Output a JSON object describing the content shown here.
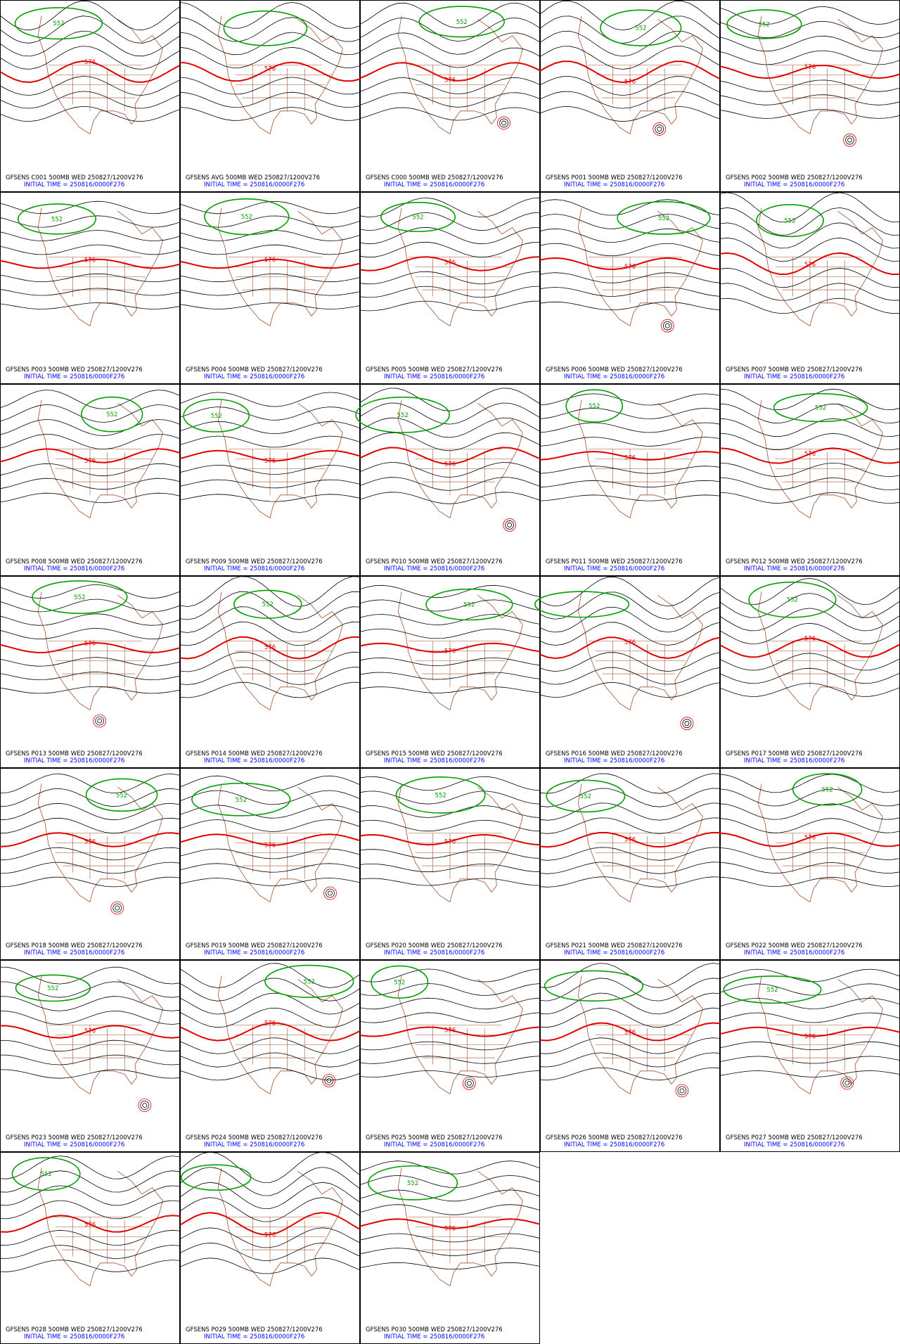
{
  "panels": [
    {
      "caption": "GFSENS C001 500MB WED 250827/1200V276",
      "init": "INITIAL TIME = 250816/0000F276",
      "labels": [
        "552",
        "576"
      ]
    },
    {
      "caption": "GFSENS AVG 500MB WED 250827/1200V276",
      "init": "INITIAL TIME = 250816/0000F276",
      "labels": [
        "576"
      ]
    },
    {
      "caption": "GFSENS C000 500MB WED 250827/1200V276",
      "init": "INITIAL TIME = 250816/0000F276",
      "labels": [
        "552",
        "576"
      ]
    },
    {
      "caption": "GFSENS P001 500MB WED 250827/1200V276",
      "init": "INITIAL TIME = 250816/0000F276",
      "labels": [
        "552",
        "576"
      ]
    },
    {
      "caption": "GFSENS P002 500MB WED 250827/1200V276",
      "init": "INITIAL TIME = 250816/0000F276",
      "labels": [
        "552",
        "576"
      ]
    },
    {
      "caption": "GFSENS P003 500MB WED 250827/1200V276",
      "init": "INITIAL TIME = 250816/0000F276",
      "labels": [
        "552",
        "576"
      ]
    },
    {
      "caption": "GFSENS P004 500MB WED 250827/1200V276",
      "init": "INITIAL TIME = 250816/0000F276",
      "labels": [
        "552",
        "576"
      ]
    },
    {
      "caption": "GFSENS P005 500MB WED 250827/1200V276",
      "init": "INITIAL TIME = 250816/0000F276",
      "labels": [
        "552",
        "576"
      ]
    },
    {
      "caption": "GFSENS P006 500MB WED 250827/1200V276",
      "init": "INITIAL TIME = 250816/0000F276",
      "labels": [
        "552",
        "576"
      ]
    },
    {
      "caption": "GFSENS P007 500MB WED 250827/1200V276",
      "init": "INITIAL TIME = 250816/0000F276",
      "labels": [
        "552",
        "576"
      ]
    },
    {
      "caption": "GFSENS P008 500MB WED 250827/1200V276",
      "init": "INITIAL TIME = 250816/0000F276",
      "labels": [
        "552",
        "576"
      ]
    },
    {
      "caption": "GFSENS P009 500MB WED 250827/1200V276",
      "init": "INITIAL TIME = 250816/0000F276",
      "labels": [
        "552",
        "576"
      ]
    },
    {
      "caption": "GFSENS P010 500MB WED 250827/1200V276",
      "init": "INITIAL TIME = 250816/0000F276",
      "labels": [
        "552",
        "576"
      ]
    },
    {
      "caption": "GFSENS P011 500MB WED 250827/1200V276",
      "init": "INITIAL TIME = 250816/0000F276",
      "labels": [
        "552",
        "576"
      ]
    },
    {
      "caption": "GFSENS P012 500MB WED 250827/1200V276",
      "init": "INITIAL TIME = 250816/0000F276",
      "labels": [
        "552",
        "576"
      ]
    },
    {
      "caption": "GFSENS P013 500MB WED 250827/1200V276",
      "init": "INITIAL TIME = 250816/0000F276",
      "labels": [
        "552",
        "576"
      ]
    },
    {
      "caption": "GFSENS P014 500MB WED 250827/1200V276",
      "init": "INITIAL TIME = 250816/0000F276",
      "labels": [
        "552",
        "576"
      ]
    },
    {
      "caption": "GFSENS P015 500MB WED 250827/1200V276",
      "init": "INITIAL TIME = 250816/0000F276",
      "labels": [
        "552",
        "576"
      ]
    },
    {
      "caption": "GFSENS P016 500MB WED 250827/1200V276",
      "init": "INITIAL TIME = 250816/0000F276",
      "labels": [
        "576"
      ]
    },
    {
      "caption": "GFSENS P017 500MB WED 250827/1200V276",
      "init": "INITIAL TIME = 250816/0000F276",
      "labels": [
        "552",
        "576"
      ]
    },
    {
      "caption": "GFSENS P018 500MB WED 250827/1200V276",
      "init": "INITIAL TIME = 250816/0000F276",
      "labels": [
        "552",
        "576"
      ]
    },
    {
      "caption": "GFSENS P019 500MB WED 250827/1200V276",
      "init": "INITIAL TIME = 250816/0000F276",
      "labels": [
        "552",
        "576"
      ]
    },
    {
      "caption": "GFSENS P020 500MB WED 250827/1200V276",
      "init": "INITIAL TIME = 250816/0000F276",
      "labels": [
        "552",
        "576"
      ]
    },
    {
      "caption": "GFSENS P021 500MB WED 250827/1200V276",
      "init": "INITIAL TIME = 250816/0000F276",
      "labels": [
        "552",
        "576"
      ]
    },
    {
      "caption": "GFSENS P022 500MB WED 250827/1200V276",
      "init": "INITIAL TIME = 250816/0000F276",
      "labels": [
        "552",
        "576"
      ]
    },
    {
      "caption": "GFSENS P023 500MB WED 250827/1200V276",
      "init": "INITIAL TIME = 250816/0000F276",
      "labels": [
        "552",
        "576"
      ]
    },
    {
      "caption": "GFSENS P024 500MB WED 250827/1200V276",
      "init": "INITIAL TIME = 250816/0000F276",
      "labels": [
        "552",
        "576"
      ]
    },
    {
      "caption": "GFSENS P025 500MB WED 250827/1200V276",
      "init": "INITIAL TIME = 250816/0000F276",
      "labels": [
        "552",
        "576"
      ]
    },
    {
      "caption": "GFSENS P026 500MB WED 250827/1200V276",
      "init": "INITIAL TIME = 250816/0000F276",
      "labels": [
        "576"
      ]
    },
    {
      "caption": "GFSENS P027 500MB WED 250827/1200V276",
      "init": "INITIAL TIME = 250816/0000F276",
      "labels": [
        "552",
        "576"
      ]
    },
    {
      "caption": "GFSENS P028 500MB WED 250827/1200V276",
      "init": "INITIAL TIME = 250816/0000F276",
      "labels": [
        "552",
        "576"
      ]
    },
    {
      "caption": "GFSENS P029 500MB WED 250827/1200V276",
      "init": "INITIAL TIME = 250816/0000F276",
      "labels": [
        "576"
      ]
    },
    {
      "caption": "GFSENS P030 500MB WED 250827/1200V276",
      "init": "INITIAL TIME = 250816/0000F276",
      "labels": [
        "552",
        "576"
      ]
    }
  ]
}
